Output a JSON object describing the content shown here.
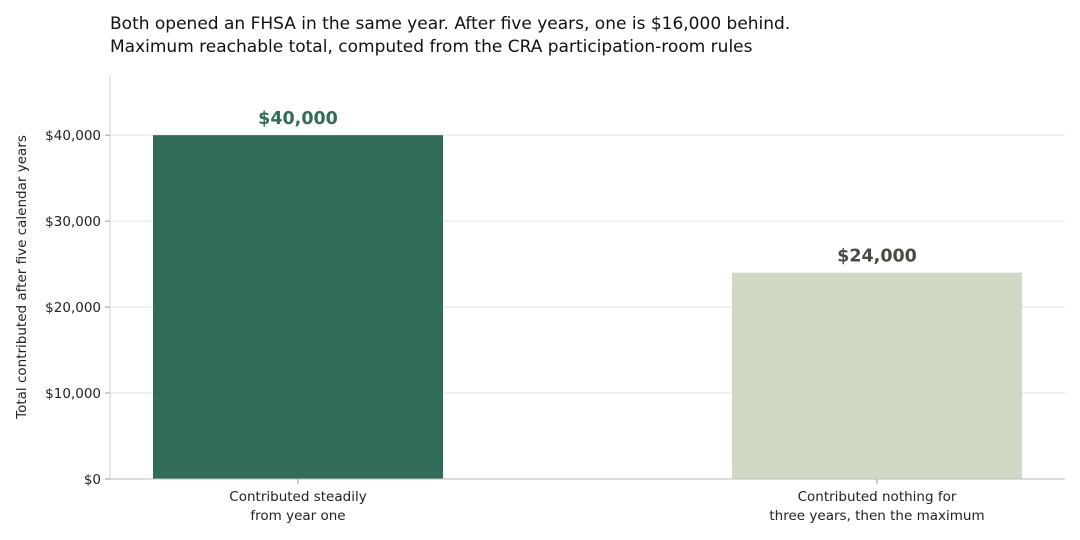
{
  "chart_data": {
    "type": "bar",
    "title": "Both opened an FHSA in the same year. After five years, one is $16,000 behind.",
    "subtitle": "Maximum reachable total, computed from the CRA participation-room rules",
    "ylabel": "Total contributed after five calendar years",
    "xlabel": "",
    "categories": [
      [
        "Contributed steadily",
        "from year one"
      ],
      [
        "Contributed nothing for",
        "three years, then the maximum"
      ]
    ],
    "values": [
      40000,
      24000
    ],
    "value_labels": [
      "$40,000",
      "$24,000"
    ],
    "bar_colors": [
      "#316b59",
      "#d0d8c3"
    ],
    "label_colors": [
      "#316b59",
      "#4a4a44"
    ],
    "ylim": [
      0,
      47000
    ],
    "yticks": [
      0,
      10000,
      20000,
      30000,
      40000
    ],
    "ytick_labels": [
      "$0",
      "$10,000",
      "$20,000",
      "$30,000",
      "$40,000"
    ],
    "grid": "horizontal",
    "legend": "none"
  }
}
